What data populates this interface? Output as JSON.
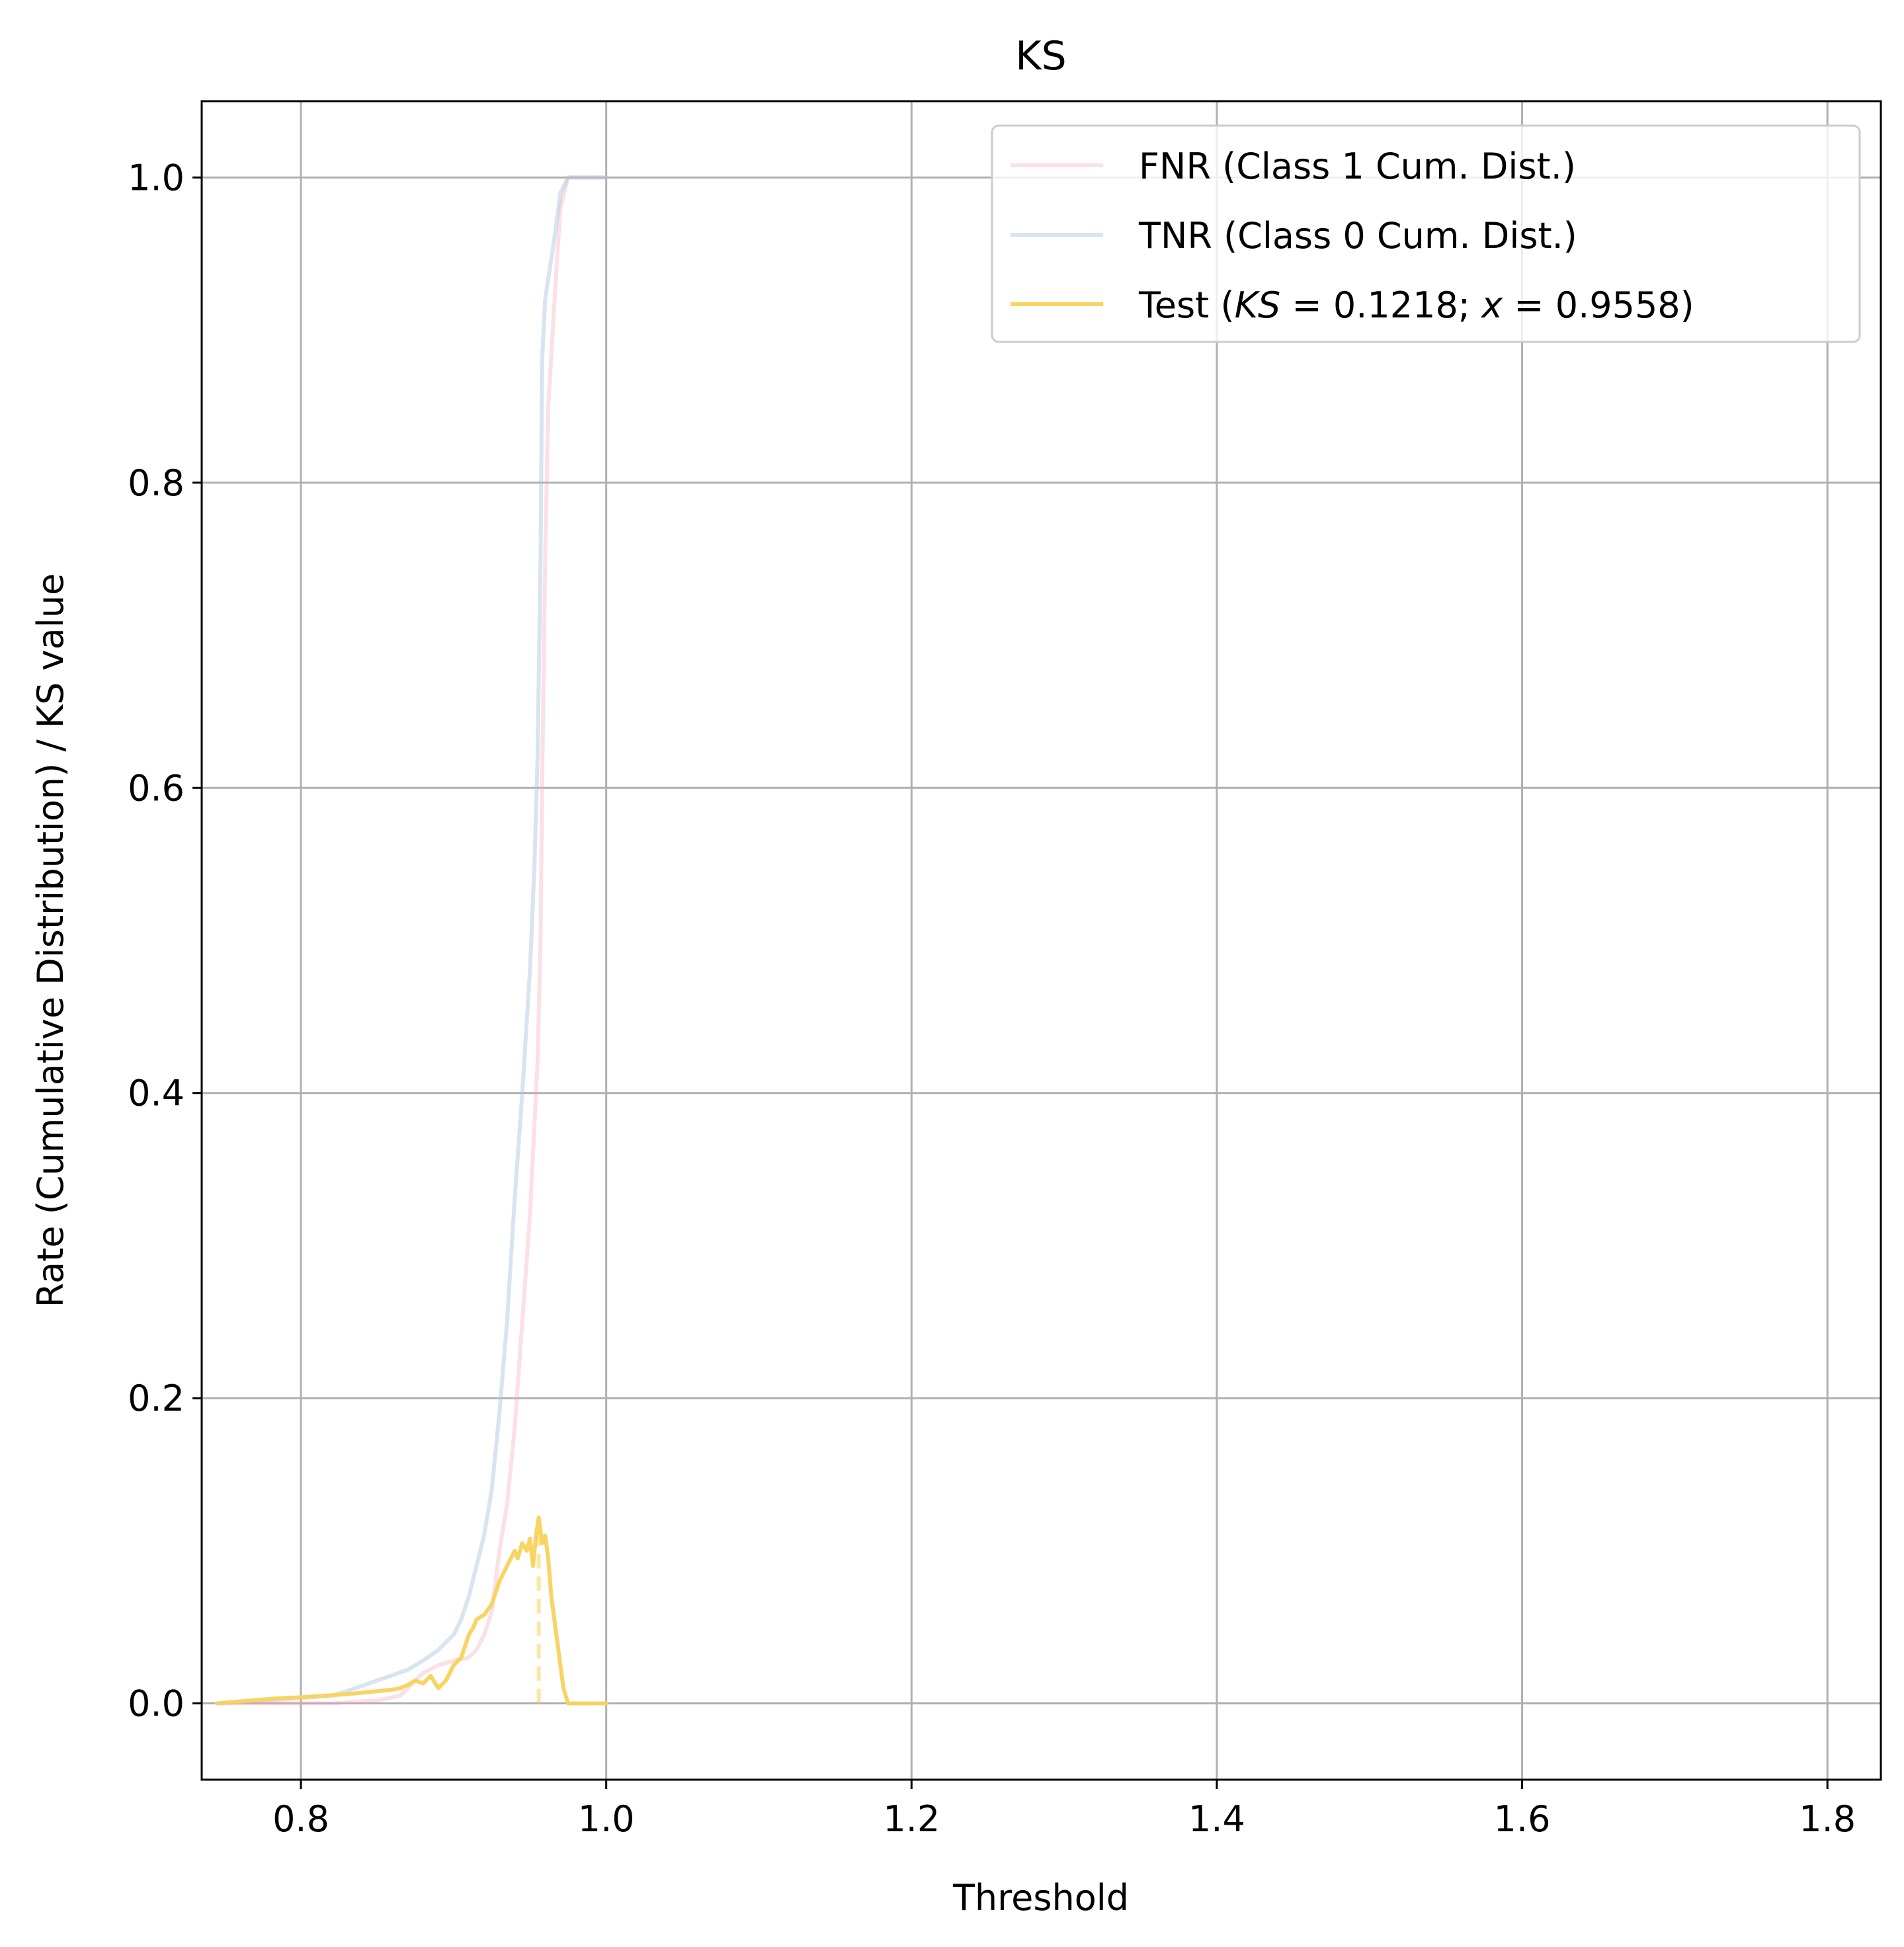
{
  "chart_data": {
    "type": "line",
    "title": "KS",
    "xlabel": "Threshold",
    "ylabel": "Rate (Cumulative Distribution) / KS value",
    "xlim": [
      0.735,
      1.835
    ],
    "ylim": [
      -0.05,
      1.05
    ],
    "xticks": [
      0.8,
      1.0,
      1.2,
      1.4,
      1.6,
      1.8
    ],
    "xtick_labels": [
      "0.8",
      "1.0",
      "1.2",
      "1.4",
      "1.6",
      "1.8"
    ],
    "yticks": [
      0.0,
      0.2,
      0.4,
      0.6,
      0.8,
      1.0
    ],
    "ytick_labels": [
      "0.0",
      "0.2",
      "0.4",
      "0.6",
      "0.8",
      "1.0"
    ],
    "grid": true,
    "legend_position": "upper right",
    "series": [
      {
        "name": "FNR (Class 1 Cum. Dist.)",
        "color": "#f4a7b5",
        "opacity": 0.35,
        "x": [
          0.745,
          0.78,
          0.82,
          0.85,
          0.865,
          0.87,
          0.88,
          0.89,
          0.9,
          0.91,
          0.915,
          0.92,
          0.925,
          0.93,
          0.935,
          0.94,
          0.945,
          0.95,
          0.952,
          0.955,
          0.957,
          0.958,
          0.96,
          0.962,
          0.965,
          0.968,
          0.97,
          0.975,
          1.0
        ],
        "y": [
          0.0,
          0.0,
          0.0,
          0.002,
          0.005,
          0.01,
          0.02,
          0.025,
          0.028,
          0.03,
          0.035,
          0.045,
          0.06,
          0.1,
          0.13,
          0.18,
          0.25,
          0.32,
          0.36,
          0.42,
          0.5,
          0.6,
          0.75,
          0.85,
          0.9,
          0.95,
          0.98,
          1.0,
          1.0
        ]
      },
      {
        "name": "TNR (Class 0 Cum. Dist.)",
        "color": "#a8c4de",
        "opacity": 0.45,
        "x": [
          0.745,
          0.78,
          0.82,
          0.83,
          0.85,
          0.87,
          0.88,
          0.89,
          0.9,
          0.905,
          0.91,
          0.915,
          0.92,
          0.925,
          0.93,
          0.935,
          0.94,
          0.945,
          0.95,
          0.953,
          0.955,
          0.957,
          0.958,
          0.96,
          0.963,
          0.966,
          0.97,
          0.975,
          1.0
        ],
        "y": [
          0.0,
          0.002,
          0.005,
          0.008,
          0.015,
          0.022,
          0.028,
          0.035,
          0.045,
          0.055,
          0.07,
          0.09,
          0.11,
          0.14,
          0.19,
          0.25,
          0.33,
          0.4,
          0.48,
          0.55,
          0.62,
          0.75,
          0.88,
          0.92,
          0.94,
          0.96,
          0.99,
          1.0,
          1.0
        ]
      },
      {
        "name": "Test ($KS = 0.1218$; $x = 0.9558$)",
        "color": "#f9d25a",
        "opacity": 0.95,
        "x": [
          0.745,
          0.78,
          0.8,
          0.83,
          0.85,
          0.86,
          0.865,
          0.87,
          0.875,
          0.88,
          0.885,
          0.89,
          0.895,
          0.9,
          0.905,
          0.91,
          0.913,
          0.915,
          0.92,
          0.925,
          0.93,
          0.935,
          0.94,
          0.942,
          0.945,
          0.948,
          0.95,
          0.952,
          0.954,
          0.9558,
          0.958,
          0.96,
          0.962,
          0.964,
          0.966,
          0.968,
          0.97,
          0.972,
          0.975,
          0.98,
          1.0
        ],
        "y": [
          0.0,
          0.003,
          0.004,
          0.006,
          0.008,
          0.009,
          0.01,
          0.012,
          0.015,
          0.013,
          0.018,
          0.01,
          0.015,
          0.025,
          0.03,
          0.045,
          0.05,
          0.055,
          0.058,
          0.065,
          0.08,
          0.09,
          0.1,
          0.095,
          0.105,
          0.1,
          0.108,
          0.09,
          0.11,
          0.1218,
          0.105,
          0.11,
          0.095,
          0.07,
          0.055,
          0.04,
          0.025,
          0.01,
          0.0,
          0.0,
          0.0
        ]
      }
    ],
    "ks_marker": {
      "x": 0.9558,
      "y_from": 0.0,
      "y_to": 0.1218,
      "style": "dashed"
    }
  }
}
